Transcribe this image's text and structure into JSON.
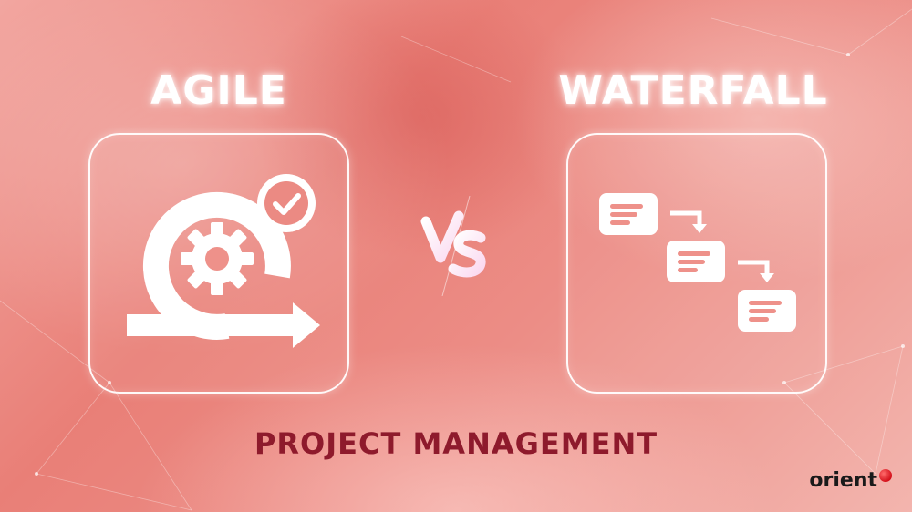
{
  "left_panel": {
    "title": "AGILE",
    "icon": "agile-cycle-icon"
  },
  "right_panel": {
    "title": "WATERFALL",
    "icon": "waterfall-flow-icon"
  },
  "vs_label": "VS",
  "subtitle": "PROJECT MANAGEMENT",
  "brand": {
    "name": "orient",
    "accent": "#d4111b"
  },
  "colors": {
    "title": "#ffffff",
    "subtitle": "#8e1a2c",
    "background": "#e97f77"
  }
}
